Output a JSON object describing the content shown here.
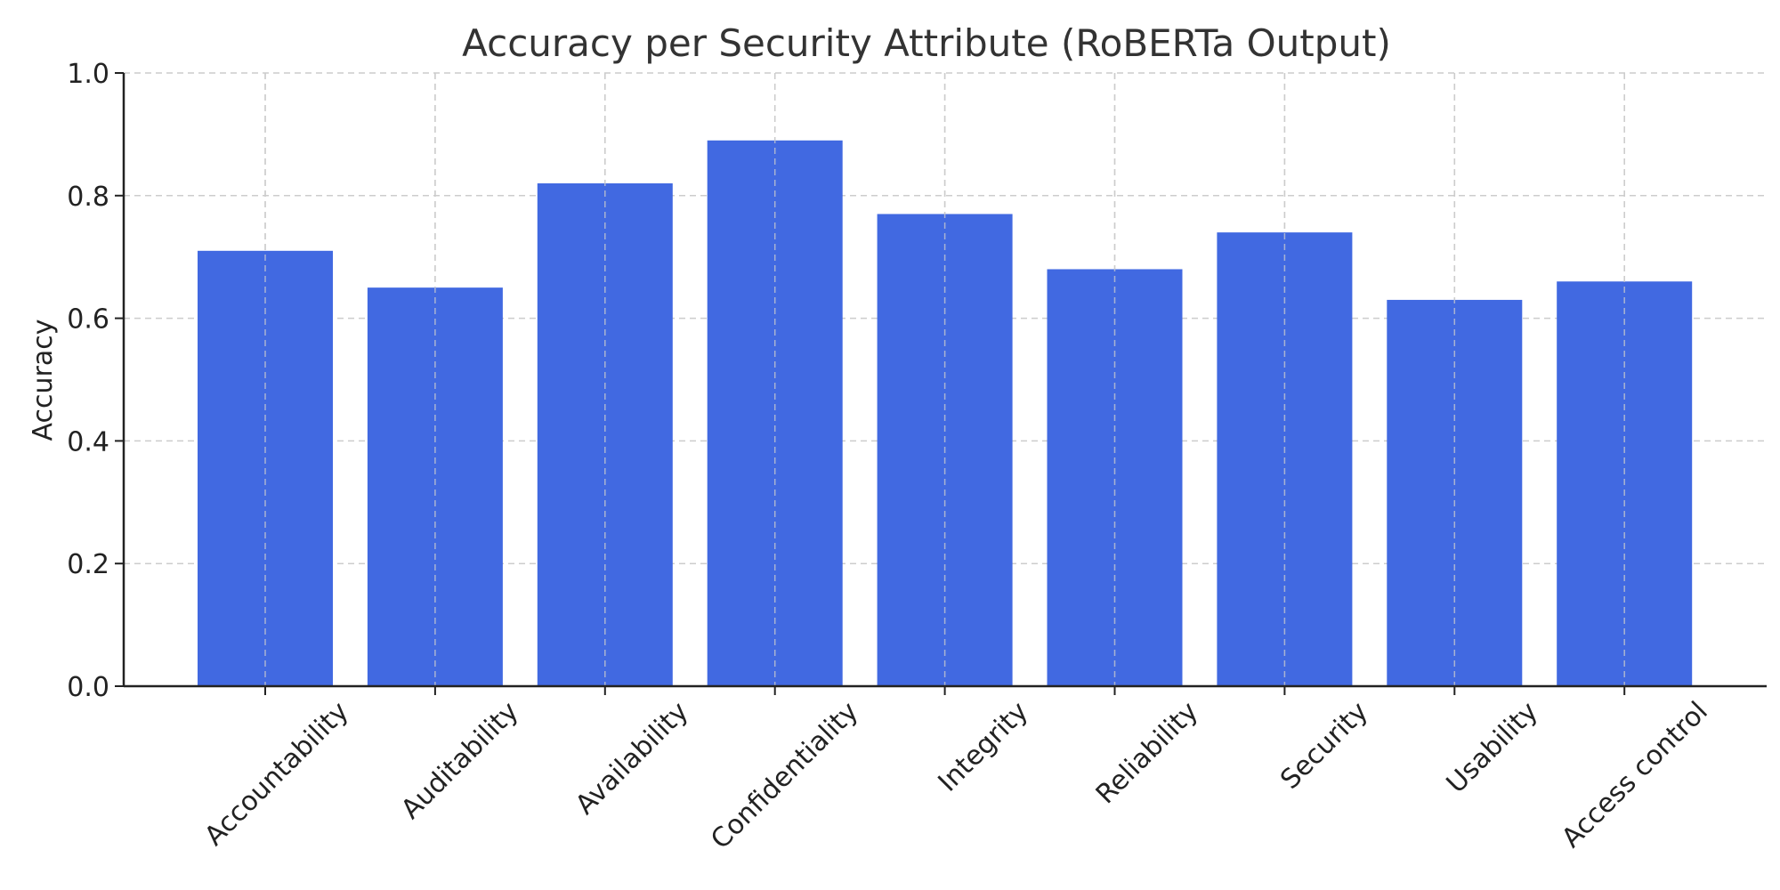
{
  "chart_data": {
    "type": "bar",
    "title": "Accuracy per Security Attribute (RoBERTa Output)",
    "xlabel": "",
    "ylabel": "Accuracy",
    "categories": [
      "Accountability",
      "Auditability",
      "Availability",
      "Confidentiality",
      "Integrity",
      "Reliability",
      "Security",
      "Usability",
      "Access control"
    ],
    "values": [
      0.71,
      0.65,
      0.82,
      0.89,
      0.77,
      0.68,
      0.74,
      0.63,
      0.66
    ],
    "ylim": [
      0.0,
      1.0
    ],
    "yticks": [
      "0.0",
      "0.2",
      "0.4",
      "0.6",
      "0.8",
      "1.0"
    ],
    "grid": true,
    "bar_color": "#4169e1",
    "legend": "none"
  }
}
